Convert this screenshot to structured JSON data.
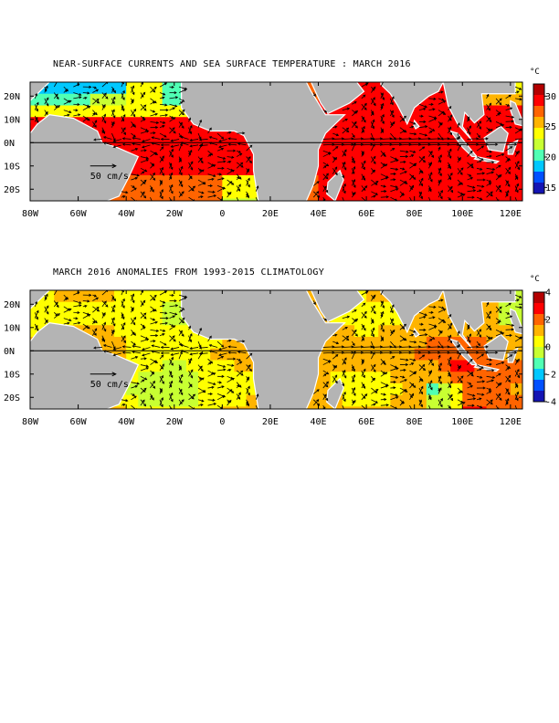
{
  "panels": [
    {
      "title": "NEAR-SURFACE CURRENTS AND SEA SURFACE TEMPERATURE : MARCH 2016",
      "unit_label": "°C",
      "colorbar_ticks": [
        "30",
        "25",
        "20",
        "15"
      ],
      "colorbar_range": [
        14,
        32
      ],
      "scale_arrow_label": "50 cm/s",
      "variable": "sst"
    },
    {
      "title": "MARCH 2016 ANOMALIES FROM 1993-2015 CLIMATOLOGY",
      "unit_label": "°C",
      "colorbar_ticks": [
        "4",
        "2",
        "0",
        "-2",
        "-4"
      ],
      "colorbar_range": [
        -4,
        4
      ],
      "scale_arrow_label": "50 cm/s",
      "variable": "anomaly"
    }
  ],
  "lat_labels": [
    "20N",
    "10N",
    "0N",
    "10S",
    "20S"
  ],
  "lon_labels": [
    "80W",
    "60W",
    "40W",
    "20W",
    "0",
    "20E",
    "40E",
    "60E",
    "80E",
    "100E",
    "120E"
  ],
  "colors": {
    "land": "#b4b4b4",
    "colormap": [
      "#1414b4",
      "#0050ff",
      "#00c8ff",
      "#50ffb4",
      "#c8ff32",
      "#ffff00",
      "#ffb400",
      "#ff6400",
      "#ff0000",
      "#b40000"
    ]
  }
}
